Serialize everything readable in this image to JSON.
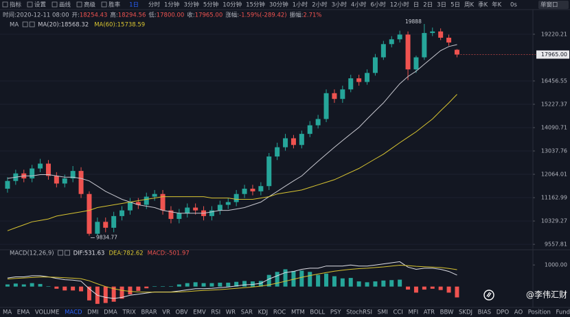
{
  "toolbar": {
    "tools": [
      "指标",
      "设置",
      "画线",
      "高级",
      "胜率"
    ],
    "periods": [
      "1日",
      "分时",
      "1分钟",
      "3分钟",
      "5分钟",
      "10分钟",
      "15分钟",
      "30分钟",
      "1小时",
      "2小时",
      "3小时",
      "4小时",
      "6小时",
      "12小时",
      "日",
      "2日",
      "3日",
      "5日",
      "周K",
      "季K",
      "年K"
    ],
    "right": [
      "0s",
      "单窗口"
    ]
  },
  "info": [
    {
      "label": "时间:",
      "value": "2020-12-11 08:00"
    },
    {
      "label": "开:",
      "value": "18254.43"
    },
    {
      "label": "高:",
      "value": "18294.56"
    },
    {
      "label": "低:",
      "value": "17800.00"
    },
    {
      "label": "收:",
      "value": "17965.00"
    },
    {
      "label": "涨幅:",
      "value": "-1.59%(-289.42)"
    },
    {
      "label": "振幅:",
      "value": "2.71%"
    }
  ],
  "chart_data": [
    {
      "type": "candlestick",
      "legend_title": "MA",
      "up_color": "#26a69a",
      "down_color": "#ef5350",
      "log_scale": true,
      "grid": true,
      "open": [
        11500,
        11800,
        12100,
        11900,
        12300,
        12500,
        12000,
        11700,
        11900,
        12200,
        11300,
        9900,
        10300,
        10100,
        10500,
        10700,
        11000,
        10900,
        11200,
        11300,
        10700,
        10400,
        10600,
        10800,
        10700,
        10500,
        10700,
        10900,
        11000,
        11300,
        11500,
        11400,
        11600,
        12800,
        13200,
        13600,
        13300,
        13800,
        14200,
        14500,
        15800,
        15500,
        16000,
        16600,
        16400,
        16900,
        17800,
        18600,
        18900,
        19200,
        17100,
        17800,
        19300,
        19400,
        19000,
        18254.43
      ],
      "high": [
        11950,
        12250,
        12250,
        12450,
        12700,
        12650,
        12150,
        12050,
        12400,
        12350,
        11400,
        10450,
        10450,
        10650,
        10850,
        11150,
        11150,
        11350,
        11450,
        11450,
        10850,
        10750,
        10950,
        10950,
        10850,
        10850,
        11050,
        11150,
        11450,
        11650,
        11650,
        11750,
        12950,
        13400,
        13800,
        13750,
        13950,
        14400,
        14700,
        16000,
        16000,
        16200,
        16800,
        16800,
        17100,
        18000,
        18800,
        19100,
        19450,
        19400,
        17900,
        19888,
        19650,
        19600,
        19200,
        18294.56
      ],
      "low": [
        11350,
        11650,
        11750,
        11750,
        12150,
        11850,
        11550,
        11550,
        11750,
        11150,
        9834.77,
        9850,
        9950,
        9950,
        10350,
        10550,
        10750,
        10750,
        11050,
        10550,
        10250,
        10250,
        10450,
        10550,
        10350,
        10350,
        10550,
        10750,
        10850,
        11150,
        11250,
        11250,
        11450,
        12650,
        13050,
        13150,
        13150,
        13650,
        14050,
        14350,
        15300,
        15300,
        15850,
        16200,
        16250,
        16750,
        17650,
        18400,
        18700,
        16500,
        16900,
        17650,
        19100,
        18850,
        18500,
        17800
      ],
      "close": [
        11800,
        12100,
        11900,
        12300,
        12500,
        12000,
        11700,
        11900,
        12200,
        11300,
        9900,
        10300,
        10100,
        10500,
        10700,
        11000,
        10900,
        11200,
        11300,
        10700,
        10400,
        10600,
        10800,
        10700,
        10500,
        10700,
        10900,
        11000,
        11300,
        11500,
        11400,
        11600,
        12800,
        13200,
        13600,
        13300,
        13800,
        14200,
        14500,
        15800,
        15500,
        16000,
        16600,
        16400,
        16900,
        17800,
        18600,
        18900,
        19200,
        17100,
        17800,
        19300,
        19400,
        19000,
        18700,
        17965
      ],
      "series": [
        {
          "name": "MA(20):18568.32",
          "color": "#c8c8d0",
          "values": [
            11900,
            11950,
            12000,
            12000,
            12050,
            12050,
            12000,
            11950,
            11950,
            11900,
            11800,
            11600,
            11400,
            11250,
            11100,
            11000,
            10900,
            10850,
            10800,
            10700,
            10650,
            10600,
            10600,
            10600,
            10600,
            10650,
            10700,
            10700,
            10750,
            10800,
            10900,
            11000,
            11200,
            11400,
            11600,
            11800,
            12000,
            12300,
            12600,
            12900,
            13200,
            13500,
            13800,
            14100,
            14500,
            14900,
            15300,
            15800,
            16300,
            16700,
            17000,
            17400,
            17800,
            18200,
            18450,
            18568.32
          ]
        },
        {
          "name": "MA(60):15738.59",
          "color": "#d9c531",
          "values": [
            10000,
            10100,
            10200,
            10300,
            10350,
            10400,
            10500,
            10550,
            10600,
            10650,
            10700,
            10800,
            10850,
            10900,
            10950,
            11000,
            11050,
            11100,
            11150,
            11200,
            11200,
            11200,
            11200,
            11200,
            11200,
            11150,
            11150,
            11150,
            11100,
            11100,
            11100,
            11150,
            11200,
            11300,
            11350,
            11400,
            11450,
            11550,
            11650,
            11750,
            11850,
            12000,
            12150,
            12300,
            12500,
            12700,
            12900,
            13150,
            13400,
            13650,
            13900,
            14200,
            14500,
            14900,
            15300,
            15738.59
          ]
        }
      ],
      "ylim": [
        9430,
        19660
      ],
      "yticks": [
        19220.21,
        16456.55,
        15227.37,
        14090.71,
        13037.76,
        12064.01,
        11162.99,
        10329.27,
        9557.81
      ],
      "last_price": {
        "value": 17965,
        "label": "17965.00"
      }
    },
    {
      "type": "macd",
      "title": "MACD(12,26,9)",
      "series": [
        {
          "name": "DIF:531.63",
          "color": "#e0e0e8",
          "values": [
            400,
            450,
            450,
            500,
            500,
            450,
            380,
            320,
            300,
            250,
            -100,
            -400,
            -500,
            -550,
            -500,
            -400,
            -350,
            -300,
            -250,
            -250,
            -250,
            -200,
            -150,
            -100,
            -100,
            -80,
            -50,
            -20,
            30,
            80,
            100,
            150,
            350,
            500,
            650,
            700,
            800,
            850,
            850,
            950,
            950,
            950,
            1000,
            950,
            950,
            1000,
            1050,
            1100,
            1150,
            900,
            800,
            850,
            850,
            800,
            700,
            531.63
          ]
        },
        {
          "name": "DEA:782.62",
          "color": "#d9c531",
          "values": [
            350,
            380,
            400,
            420,
            440,
            440,
            430,
            410,
            390,
            360,
            270,
            130,
            0,
            -100,
            -180,
            -220,
            -250,
            -260,
            -260,
            -260,
            -260,
            -250,
            -230,
            -200,
            -180,
            -160,
            -140,
            -110,
            -80,
            -50,
            -20,
            20,
            80,
            160,
            250,
            340,
            430,
            510,
            580,
            650,
            710,
            760,
            800,
            830,
            850,
            880,
            910,
            950,
            990,
            970,
            940,
            920,
            900,
            880,
            840,
            782.62
          ]
        }
      ],
      "histogram": {
        "name": "MACD:-501.97",
        "up_color": "#26a69a",
        "down_color": "#ef5350",
        "values": [
          100,
          140,
          100,
          160,
          120,
          20,
          -100,
          -180,
          -180,
          -220,
          -640,
          -800,
          -760,
          -700,
          -560,
          -360,
          -200,
          -80,
          20,
          20,
          20,
          100,
          160,
          200,
          160,
          160,
          180,
          180,
          220,
          260,
          240,
          260,
          540,
          680,
          800,
          720,
          740,
          680,
          540,
          600,
          480,
          380,
          400,
          240,
          200,
          240,
          280,
          300,
          320,
          -140,
          -280,
          -140,
          -100,
          -160,
          -280,
          -501.97
        ]
      },
      "ylim": [
        -900,
        1450
      ],
      "yticks": [
        {
          "value": 1000,
          "label": "1000.00"
        }
      ]
    }
  ],
  "indicator_tabs": [
    "MA",
    "EMA",
    "VOLUME",
    "MACD",
    "DMI",
    "DMA",
    "TRIX",
    "BRAR",
    "VR",
    "OBV",
    "EMV",
    "RSI",
    "WR",
    "SAR",
    "KDJ",
    "ROC",
    "MTM",
    "BOLL",
    "PSY",
    "StochRSI",
    "SMI",
    "CCI",
    "MFI",
    "ATR",
    "BBW",
    "SKDJ",
    "BIAS",
    "DPO",
    "AO",
    "Position",
    "Fundflow"
  ],
  "active_tab": 3,
  "watermark": "@李伟汇财"
}
